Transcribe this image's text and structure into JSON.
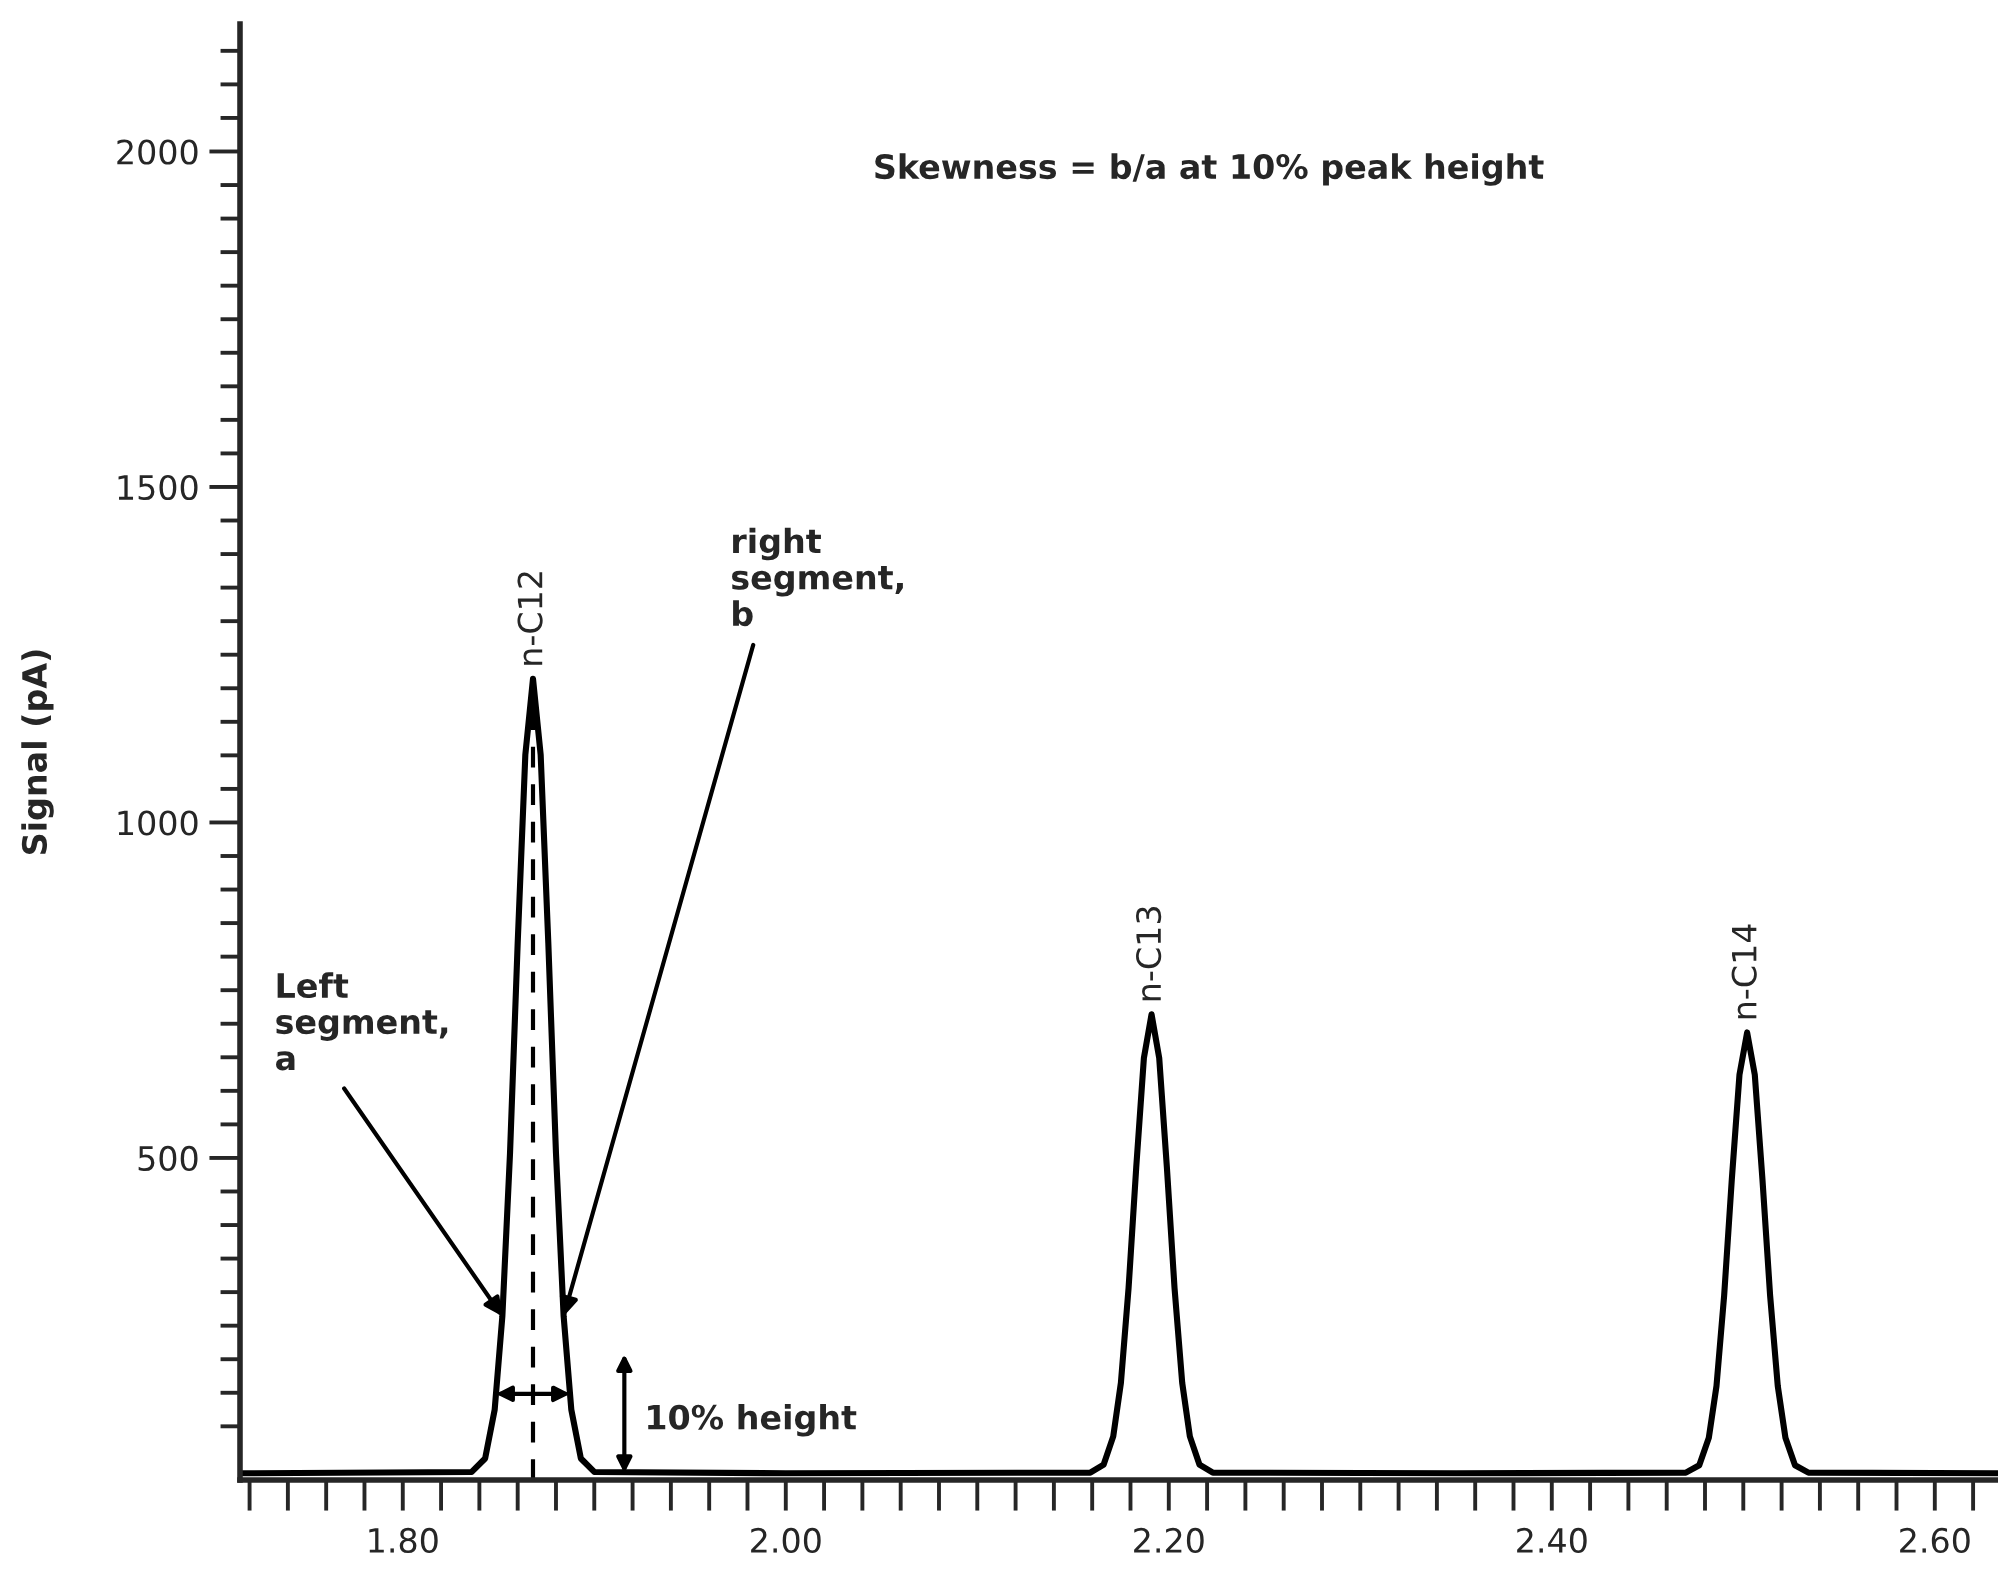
{
  "chart_data": {
    "type": "line",
    "ylabel": "Signal (pA)",
    "x": [
      1.715,
      1.836,
      1.843,
      1.848,
      1.852,
      1.856,
      1.86,
      1.864,
      1.868,
      1.872,
      1.876,
      1.88,
      1.884,
      1.888,
      1.893,
      1.9,
      2.0,
      2.159,
      2.166,
      2.171,
      2.175,
      2.179,
      2.183,
      2.187,
      2.191,
      2.195,
      2.199,
      2.203,
      2.207,
      2.211,
      2.216,
      2.223,
      2.35,
      2.47,
      2.477,
      2.482,
      2.486,
      2.49,
      2.494,
      2.498,
      2.502,
      2.506,
      2.51,
      2.514,
      2.518,
      2.522,
      2.527,
      2.534,
      2.633
    ],
    "series": [
      {
        "color": "#000000",
        "values": [
          30,
          32,
          52,
          125,
          264,
          507,
          820,
          1101,
          1214,
          1101,
          820,
          507,
          264,
          125,
          52,
          32,
          30,
          31,
          43,
          85,
          165,
          306,
          486,
          649,
          714,
          649,
          486,
          306,
          165,
          85,
          43,
          31,
          30,
          31,
          42,
          83,
          160,
          295,
          468,
          624,
          687,
          624,
          468,
          295,
          160,
          83,
          42,
          31,
          30
        ]
      }
    ],
    "xlim": [
      1.715,
      2.633
    ],
    "xticks": [
      {
        "value": 1.72,
        "label": null
      },
      {
        "value": 1.74,
        "label": null
      },
      {
        "value": 1.76,
        "label": null
      },
      {
        "value": 1.78,
        "label": null
      },
      {
        "value": 1.8,
        "label": "1.80"
      },
      {
        "value": 1.82,
        "label": null
      },
      {
        "value": 1.84,
        "label": null
      },
      {
        "value": 1.86,
        "label": null
      },
      {
        "value": 1.88,
        "label": null
      },
      {
        "value": 1.9,
        "label": null
      },
      {
        "value": 1.92,
        "label": null
      },
      {
        "value": 1.94,
        "label": null
      },
      {
        "value": 1.96,
        "label": null
      },
      {
        "value": 1.98,
        "label": null
      },
      {
        "value": 2.0,
        "label": "2.00"
      },
      {
        "value": 2.02,
        "label": null
      },
      {
        "value": 2.04,
        "label": null
      },
      {
        "value": 2.06,
        "label": null
      },
      {
        "value": 2.08,
        "label": null
      },
      {
        "value": 2.1,
        "label": null
      },
      {
        "value": 2.12,
        "label": null
      },
      {
        "value": 2.14,
        "label": null
      },
      {
        "value": 2.16,
        "label": null
      },
      {
        "value": 2.18,
        "label": null
      },
      {
        "value": 2.2,
        "label": "2.20"
      },
      {
        "value": 2.22,
        "label": null
      },
      {
        "value": 2.24,
        "label": null
      },
      {
        "value": 2.26,
        "label": null
      },
      {
        "value": 2.28,
        "label": null
      },
      {
        "value": 2.3,
        "label": null
      },
      {
        "value": 2.32,
        "label": null
      },
      {
        "value": 2.34,
        "label": null
      },
      {
        "value": 2.36,
        "label": null
      },
      {
        "value": 2.38,
        "label": null
      },
      {
        "value": 2.4,
        "label": "2.40"
      },
      {
        "value": 2.42,
        "label": null
      },
      {
        "value": 2.44,
        "label": null
      },
      {
        "value": 2.46,
        "label": null
      },
      {
        "value": 2.48,
        "label": null
      },
      {
        "value": 2.5,
        "label": null
      },
      {
        "value": 2.52,
        "label": null
      },
      {
        "value": 2.54,
        "label": null
      },
      {
        "value": 2.56,
        "label": null
      },
      {
        "value": 2.58,
        "label": null
      },
      {
        "value": 2.6,
        "label": "2.60"
      },
      {
        "value": 2.62,
        "label": null
      }
    ],
    "ylim": [
      20,
      2190
    ],
    "yticks": [
      {
        "value": 100,
        "label": null
      },
      {
        "value": 150,
        "label": null
      },
      {
        "value": 200,
        "label": null
      },
      {
        "value": 250,
        "label": null
      },
      {
        "value": 300,
        "label": null
      },
      {
        "value": 350,
        "label": null
      },
      {
        "value": 400,
        "label": null
      },
      {
        "value": 450,
        "label": null
      },
      500,
      {
        "value": 550,
        "label": null
      },
      {
        "value": 600,
        "label": null
      },
      {
        "value": 650,
        "label": null
      },
      {
        "value": 700,
        "label": null
      },
      {
        "value": 750,
        "label": null
      },
      {
        "value": 800,
        "label": null
      },
      {
        "value": 850,
        "label": null
      },
      {
        "value": 900,
        "label": null
      },
      {
        "value": 950,
        "label": null
      },
      1000,
      {
        "value": 1050,
        "label": null
      },
      {
        "value": 1100,
        "label": null
      },
      {
        "value": 1150,
        "label": null
      },
      {
        "value": 1200,
        "label": null
      },
      {
        "value": 1250,
        "label": null
      },
      {
        "value": 1300,
        "label": null
      },
      {
        "value": 1350,
        "label": null
      },
      {
        "value": 1400,
        "label": null
      },
      {
        "value": 1450,
        "label": null
      },
      1500,
      {
        "value": 1550,
        "label": null
      },
      {
        "value": 1600,
        "label": null
      },
      {
        "value": 1650,
        "label": null
      },
      {
        "value": 1700,
        "label": null
      },
      {
        "value": 1750,
        "label": null
      },
      {
        "value": 1800,
        "label": null
      },
      {
        "value": 1850,
        "label": null
      },
      {
        "value": 1900,
        "label": null
      },
      {
        "value": 1950,
        "label": null
      },
      2000,
      {
        "value": 2050,
        "label": null
      },
      {
        "value": 2100,
        "label": null
      },
      {
        "value": 2150,
        "label": null
      }
    ],
    "ref_lines": [
      {
        "axis": "x",
        "value": 1.868,
        "line_style": "dashed"
      }
    ],
    "grid": false,
    "legend": false,
    "annotations": [
      "Skewness = b/a at 10% peak height",
      {
        "text": "n-C12",
        "x": 1.868,
        "y": 1214
      },
      {
        "text": "n-C13",
        "x": 2.191,
        "y": 714
      },
      {
        "text": "n-C14",
        "x": 2.502,
        "y": 687
      },
      {
        "text": "Left\nsegment,\na",
        "x": 1.852,
        "y": 264
      },
      {
        "text": "right\nsegment,\nb",
        "x": 1.884,
        "y": 264
      },
      "10% height"
    ]
  }
}
